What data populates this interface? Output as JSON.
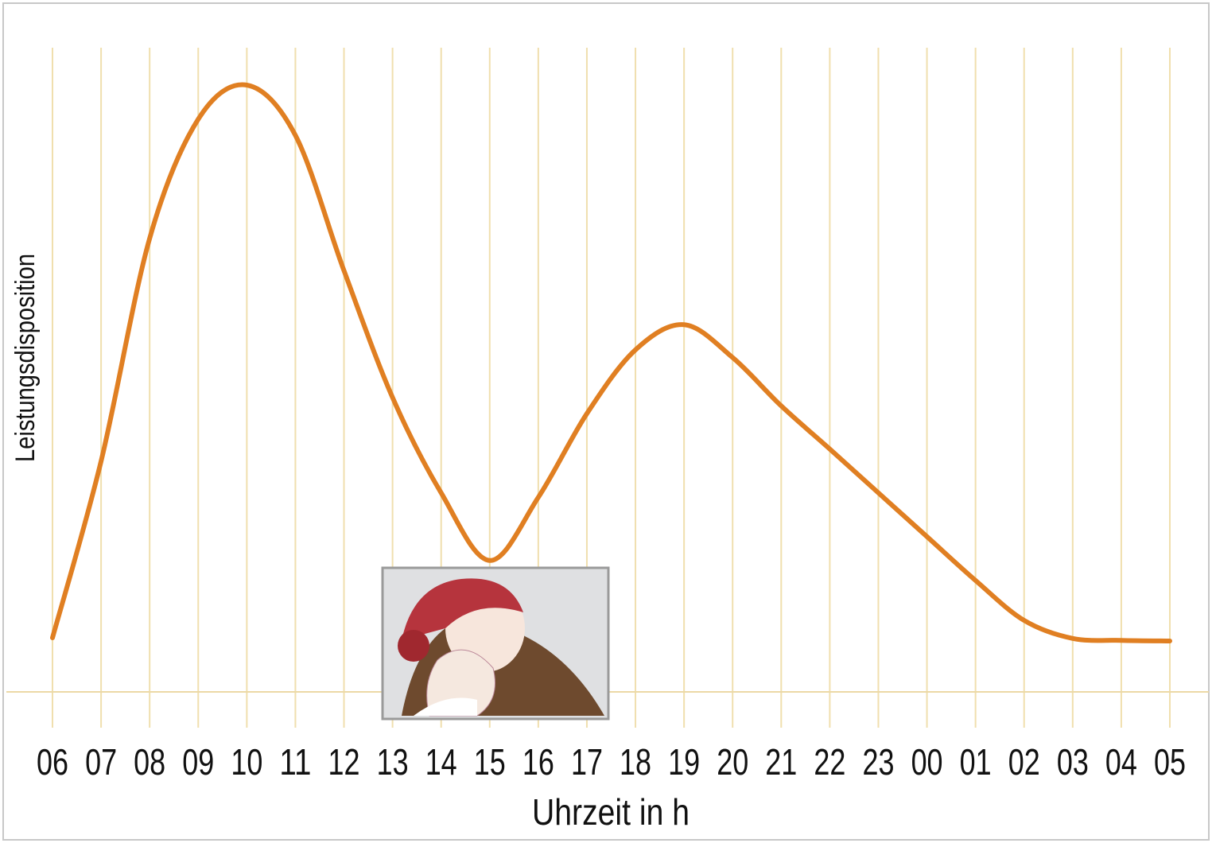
{
  "chart_data": {
    "type": "line",
    "y_label": "Leistungsdisposition",
    "x_label": "Uhrzeit in h",
    "categories": [
      "06",
      "07",
      "08",
      "09",
      "10",
      "11",
      "12",
      "13",
      "14",
      "15",
      "16",
      "17",
      "18",
      "19",
      "20",
      "21",
      "22",
      "23",
      "00",
      "01",
      "02",
      "03",
      "04",
      "05"
    ],
    "series": [
      {
        "color": "#e07f22",
        "values": [
          8.4,
          35.8,
          70.4,
          88.9,
          94.2,
          86.4,
          65.4,
          45.7,
          30.9,
          20.4,
          30.2,
          43.2,
          53.1,
          57.0,
          51.9,
          44.4,
          37.7,
          30.9,
          24.1,
          17.3,
          11.1,
          8.3,
          8.0,
          7.9
        ]
      }
    ],
    "ylim": [
      0,
      100
    ],
    "grid": true
  }
}
